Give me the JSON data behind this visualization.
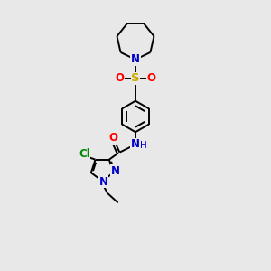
{
  "background_color": "#e8e8e8",
  "bond_color": "#000000",
  "n_color": "#0000cc",
  "o_color": "#ff0000",
  "s_color": "#ccaa00",
  "cl_color": "#008800",
  "figsize": [
    3.0,
    3.0
  ],
  "dpi": 100,
  "xlim": [
    0,
    10
  ],
  "ylim": [
    0,
    14
  ]
}
